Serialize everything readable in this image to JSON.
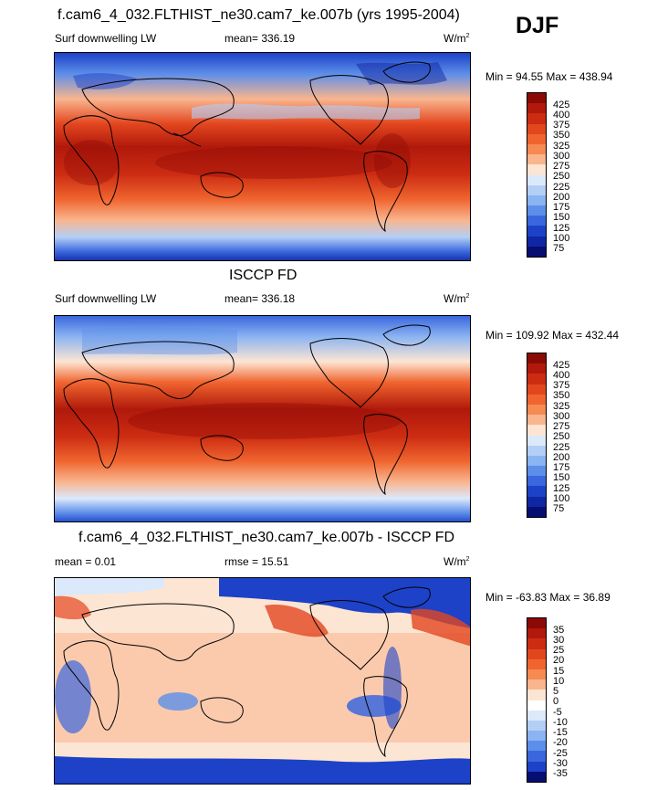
{
  "season": "DJF",
  "panels": [
    {
      "id": "model",
      "title": "f.cam6_4_032.FLTHIST_ne30.cam7_ke.007b (yrs 1995-2004)",
      "left_label": "Surf downwelling LW",
      "center_label": "mean= 336.19",
      "units": "W/m",
      "units_sup": "2",
      "minmax": "Min =  94.55 Max = 438.94",
      "colorbar_labels": [
        "425",
        "400",
        "375",
        "350",
        "325",
        "300",
        "275",
        "250",
        "225",
        "200",
        "175",
        "150",
        "125",
        "100",
        "75"
      ],
      "colorbar_colors": [
        "#8b0a05",
        "#b0190b",
        "#cc2c12",
        "#e2461f",
        "#f0652f",
        "#f68a52",
        "#f9b58e",
        "#fde5d3",
        "#dbe9fb",
        "#b4cff6",
        "#8bb4f2",
        "#5d8ee9",
        "#3a67dd",
        "#1d42c8",
        "#0f27a4",
        "#070e72"
      ]
    },
    {
      "id": "obs",
      "title": "ISCCP FD",
      "left_label": "Surf downwelling LW",
      "center_label": "mean= 336.18",
      "units": "W/m",
      "units_sup": "2",
      "minmax": "Min = 109.92 Max = 432.44",
      "colorbar_labels": [
        "425",
        "400",
        "375",
        "350",
        "325",
        "300",
        "275",
        "250",
        "225",
        "200",
        "175",
        "150",
        "125",
        "100",
        "75"
      ],
      "colorbar_colors": [
        "#8b0a05",
        "#b0190b",
        "#cc2c12",
        "#e2461f",
        "#f0652f",
        "#f68a52",
        "#f9b58e",
        "#fde5d3",
        "#dbe9fb",
        "#b4cff6",
        "#8bb4f2",
        "#5d8ee9",
        "#3a67dd",
        "#1d42c8",
        "#0f27a4",
        "#070e72"
      ]
    },
    {
      "id": "diff",
      "title": "f.cam6_4_032.FLTHIST_ne30.cam7_ke.007b - ISCCP FD",
      "left_label": "mean =   0.01",
      "center_label": "rmse =  15.51",
      "units": "W/m",
      "units_sup": "2",
      "minmax": "Min = -63.83 Max =  36.89",
      "colorbar_labels": [
        "35",
        "30",
        "25",
        "20",
        "15",
        "10",
        "5",
        "0",
        "-5",
        "-10",
        "-15",
        "-20",
        "-25",
        "-30",
        "-35"
      ],
      "colorbar_colors": [
        "#8b0a05",
        "#b0190b",
        "#cc2c12",
        "#e2461f",
        "#f0652f",
        "#f68a52",
        "#f9b58e",
        "#fde5d3",
        "#ffffff",
        "#dbe9fb",
        "#b4cff6",
        "#8bb4f2",
        "#5d8ee9",
        "#3a67dd",
        "#1d42c8",
        "#070e72"
      ]
    }
  ]
}
